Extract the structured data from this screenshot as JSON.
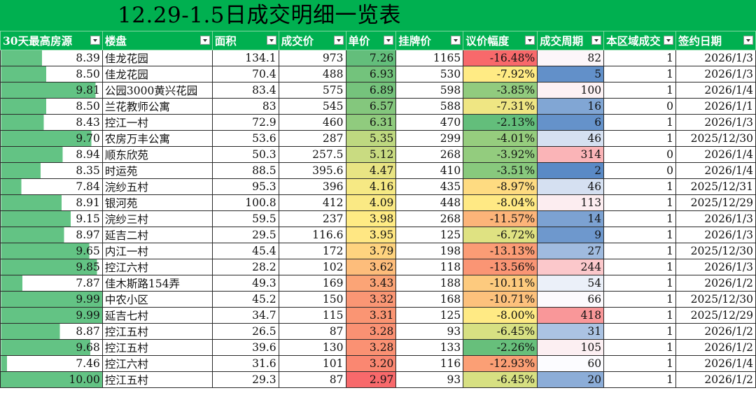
{
  "title": "12.29-1.5日成交明细一览表",
  "headers": [
    "30天最高房源",
    "楼盘",
    "面积",
    "成交价",
    "单价",
    "挂牌价",
    "议价幅度",
    "成交周期",
    "本区域成交",
    "签约日期"
  ],
  "rows": [
    [
      "8.39",
      "佳龙花园",
      "134.1",
      "973",
      "7.26",
      "1165",
      "-16.48%",
      "82",
      "1",
      "2026/1/3"
    ],
    [
      "8.50",
      "佳龙花园",
      "70.4",
      "488",
      "6.93",
      "530",
      "-7.92%",
      "5",
      "1",
      "2026/1/3"
    ],
    [
      "9.81",
      "公园3000黄兴花园",
      "83.4",
      "575",
      "6.89",
      "598",
      "-3.85%",
      "100",
      "1",
      "2026/1/4"
    ],
    [
      "8.50",
      "兰花教师公寓",
      "83",
      "545",
      "6.57",
      "588",
      "-7.31%",
      "16",
      "0",
      "2026/1/1"
    ],
    [
      "8.43",
      "控江一村",
      "72.9",
      "460",
      "6.31",
      "470",
      "-2.13%",
      "6",
      "1",
      "2026/1/3"
    ],
    [
      "9.70",
      "农房万丰公寓",
      "53.6",
      "287",
      "5.35",
      "299",
      "-4.01%",
      "46",
      "1",
      "2025/12/30"
    ],
    [
      "8.94",
      "顺东欣苑",
      "50.3",
      "257.5",
      "5.12",
      "268",
      "-3.92%",
      "314",
      "0",
      "2026/1/4"
    ],
    [
      "8.35",
      "时运苑",
      "88.5",
      "395.6",
      "4.47",
      "410",
      "-3.51%",
      "2",
      "0",
      "2026/1/4"
    ],
    [
      "7.84",
      "浣纱五村",
      "95.3",
      "396",
      "4.16",
      "435",
      "-8.97%",
      "46",
      "1",
      "2025/12/31"
    ],
    [
      "8.91",
      "银河苑",
      "100.8",
      "412",
      "4.09",
      "448",
      "-8.04%",
      "113",
      "1",
      "2025/12/29"
    ],
    [
      "9.15",
      "浣纱三村",
      "59.5",
      "237",
      "3.98",
      "268",
      "-11.57%",
      "14",
      "1",
      "2026/1/3"
    ],
    [
      "8.97",
      "延吉二村",
      "29.5",
      "116.6",
      "3.95",
      "125",
      "-6.72%",
      "9",
      "1",
      "2026/1/3"
    ],
    [
      "9.65",
      "内江一村",
      "45.4",
      "172",
      "3.79",
      "198",
      "-13.13%",
      "27",
      "1",
      "2025/12/30"
    ],
    [
      "9.85",
      "控江六村",
      "28.2",
      "102",
      "3.62",
      "118",
      "-13.56%",
      "244",
      "1",
      "2026/1/3"
    ],
    [
      "7.87",
      "佳木斯路154弄",
      "49.3",
      "169",
      "3.43",
      "188",
      "-10.11%",
      "54",
      "1",
      "2026/1/2"
    ],
    [
      "9.99",
      "中农小区",
      "45.2",
      "150",
      "3.32",
      "168",
      "-10.71%",
      "66",
      "1",
      "2025/12/30"
    ],
    [
      "9.99",
      "延吉七村",
      "34.7",
      "115",
      "3.31",
      "125",
      "-8.00%",
      "418",
      "1",
      "2025/12/29"
    ],
    [
      "8.87",
      "控江五村",
      "26.5",
      "87",
      "3.28",
      "93",
      "-6.45%",
      "31",
      "1",
      "2026/1/2"
    ],
    [
      "9.68",
      "控江五村",
      "39.6",
      "130",
      "3.28",
      "133",
      "-2.26%",
      "105",
      "1",
      "2026/1/2"
    ],
    [
      "7.46",
      "控江六村",
      "31.6",
      "101",
      "3.20",
      "116",
      "-12.93%",
      "60",
      "1",
      "2026/1/4"
    ],
    [
      "10.00",
      "控江五村",
      "29.3",
      "87",
      "2.97",
      "93",
      "-6.45%",
      "20",
      "1",
      "2026/1/2"
    ]
  ],
  "colors": {
    "header_green": "#00b050",
    "scale_green": "#63be7b",
    "scale_yellow": "#ffeb84",
    "scale_red": "#f8696b",
    "scale_white": "#fcfcff",
    "scale_blue": "#5a8ac6",
    "cycle_red": "#f8696b",
    "databar_green": "#63c384"
  },
  "icons": {
    "filter_dropdown": "chevron-down-icon"
  }
}
